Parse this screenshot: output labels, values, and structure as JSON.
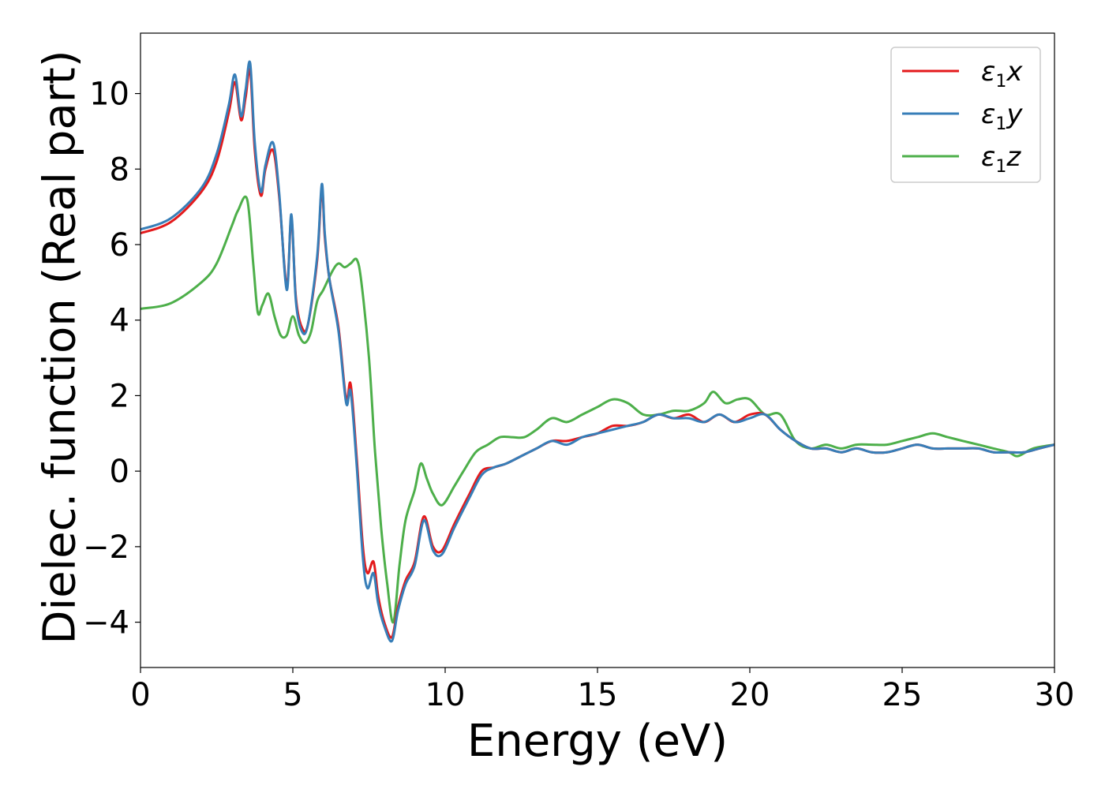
{
  "chart_data": {
    "type": "line",
    "title": "",
    "xlabel": "Energy (eV)",
    "ylabel": "Dielec. function (Real part)",
    "xlim": [
      0,
      30
    ],
    "ylim": [
      -5.2,
      11.6
    ],
    "xticks": [
      0,
      5,
      10,
      15,
      20,
      25,
      30
    ],
    "xtick_labels": [
      "0",
      "5",
      "10",
      "15",
      "20",
      "25",
      "30"
    ],
    "yticks": [
      -4,
      -2,
      0,
      2,
      4,
      6,
      8,
      10
    ],
    "ytick_labels": [
      "−4",
      "−2",
      "0",
      "2",
      "4",
      "6",
      "8",
      "10"
    ],
    "grid": false,
    "legend_position": "top-right",
    "series": [
      {
        "name": "ε1x",
        "name_base": "ε",
        "name_sub": "1",
        "name_var": "x",
        "color": "#e41a1c",
        "x": [
          0,
          1,
          2,
          2.5,
          2.9,
          3.1,
          3.3,
          3.45,
          3.6,
          3.75,
          3.95,
          4.1,
          4.35,
          4.55,
          4.8,
          4.95,
          5.1,
          5.3,
          5.5,
          5.8,
          5.95,
          6.05,
          6.2,
          6.5,
          6.75,
          6.9,
          7.1,
          7.3,
          7.45,
          7.65,
          7.8,
          8.0,
          8.25,
          8.45,
          8.7,
          9.0,
          9.3,
          9.6,
          9.9,
          10.3,
          10.8,
          11.2,
          11.6,
          12.0,
          12.5,
          13.0,
          13.5,
          14.0,
          14.5,
          15.0,
          15.5,
          16.0,
          16.5,
          17.0,
          17.5,
          18.0,
          18.5,
          19.0,
          19.5,
          20.0,
          20.5,
          21.0,
          21.5,
          22.0,
          22.5,
          23.0,
          23.5,
          24.0,
          24.5,
          25.0,
          25.5,
          26.0,
          26.5,
          27.0,
          27.5,
          28.0,
          28.5,
          29.0,
          29.5,
          30.0
        ],
        "y": [
          6.3,
          6.6,
          7.4,
          8.2,
          9.5,
          10.3,
          9.3,
          9.9,
          10.6,
          8.5,
          7.3,
          8.0,
          8.5,
          7.3,
          4.9,
          6.7,
          4.6,
          3.8,
          3.9,
          5.6,
          7.5,
          6.2,
          5.1,
          3.8,
          1.9,
          2.3,
          0.3,
          -2.0,
          -2.7,
          -2.4,
          -3.3,
          -4.0,
          -4.4,
          -3.6,
          -2.9,
          -2.4,
          -1.2,
          -2.0,
          -2.1,
          -1.4,
          -0.6,
          0.0,
          0.1,
          0.2,
          0.4,
          0.6,
          0.8,
          0.8,
          0.9,
          1.0,
          1.2,
          1.2,
          1.3,
          1.5,
          1.4,
          1.5,
          1.3,
          1.5,
          1.3,
          1.5,
          1.5,
          1.1,
          0.8,
          0.6,
          0.6,
          0.5,
          0.6,
          0.5,
          0.5,
          0.6,
          0.7,
          0.6,
          0.6,
          0.6,
          0.6,
          0.5,
          0.5,
          0.5,
          0.6,
          0.7
        ]
      },
      {
        "name": "ε1y",
        "name_base": "ε",
        "name_sub": "1",
        "name_var": "y",
        "color": "#377eb8",
        "x": [
          0,
          1,
          2,
          2.5,
          2.9,
          3.1,
          3.3,
          3.45,
          3.6,
          3.75,
          3.95,
          4.1,
          4.35,
          4.55,
          4.8,
          4.95,
          5.1,
          5.3,
          5.5,
          5.8,
          5.95,
          6.05,
          6.2,
          6.5,
          6.75,
          6.9,
          7.1,
          7.3,
          7.45,
          7.65,
          7.8,
          8.0,
          8.25,
          8.45,
          8.7,
          9.0,
          9.3,
          9.6,
          9.9,
          10.3,
          10.8,
          11.2,
          11.6,
          12.0,
          12.5,
          13.0,
          13.5,
          14.0,
          14.5,
          15.0,
          15.5,
          16.0,
          16.5,
          17.0,
          17.5,
          18.0,
          18.5,
          19.0,
          19.5,
          20.0,
          20.5,
          21.0,
          21.5,
          22.0,
          22.5,
          23.0,
          23.5,
          24.0,
          24.5,
          25.0,
          25.5,
          26.0,
          26.5,
          27.0,
          27.5,
          28.0,
          28.5,
          29.0,
          29.5,
          30.0
        ],
        "y": [
          6.4,
          6.7,
          7.5,
          8.4,
          9.7,
          10.5,
          9.4,
          10.1,
          10.8,
          8.7,
          7.4,
          8.1,
          8.7,
          7.4,
          4.8,
          6.8,
          4.5,
          3.7,
          3.9,
          5.7,
          7.6,
          6.3,
          5.1,
          3.7,
          1.8,
          2.1,
          0.1,
          -2.3,
          -3.1,
          -2.7,
          -3.5,
          -4.1,
          -4.5,
          -3.7,
          -3.0,
          -2.5,
          -1.3,
          -2.1,
          -2.2,
          -1.5,
          -0.7,
          -0.1,
          0.1,
          0.2,
          0.4,
          0.6,
          0.8,
          0.7,
          0.9,
          1.0,
          1.1,
          1.2,
          1.3,
          1.5,
          1.4,
          1.4,
          1.3,
          1.5,
          1.3,
          1.4,
          1.5,
          1.1,
          0.8,
          0.6,
          0.6,
          0.5,
          0.6,
          0.5,
          0.5,
          0.6,
          0.7,
          0.6,
          0.6,
          0.6,
          0.6,
          0.5,
          0.5,
          0.5,
          0.6,
          0.7
        ]
      },
      {
        "name": "ε1z",
        "name_base": "ε",
        "name_sub": "1",
        "name_var": "z",
        "color": "#4daf4a",
        "x": [
          0,
          1,
          2,
          2.5,
          3.0,
          3.2,
          3.5,
          3.7,
          3.85,
          4.0,
          4.2,
          4.4,
          4.6,
          4.8,
          5.0,
          5.2,
          5.4,
          5.6,
          5.8,
          6.0,
          6.3,
          6.5,
          6.7,
          6.9,
          7.1,
          7.25,
          7.5,
          7.7,
          7.9,
          8.1,
          8.3,
          8.5,
          8.7,
          9.0,
          9.2,
          9.4,
          9.6,
          9.9,
          10.3,
          10.6,
          11.0,
          11.4,
          11.8,
          12.2,
          12.6,
          13.0,
          13.5,
          14.0,
          14.5,
          15.0,
          15.5,
          16.0,
          16.5,
          17.0,
          17.5,
          18.0,
          18.5,
          18.8,
          19.2,
          19.6,
          20.0,
          20.5,
          21.0,
          21.5,
          22.0,
          22.5,
          23.0,
          23.5,
          24.0,
          24.5,
          25.0,
          25.5,
          26.0,
          26.5,
          27.0,
          27.5,
          28.0,
          28.5,
          28.8,
          29.3,
          30.0
        ],
        "y": [
          4.3,
          4.45,
          5.0,
          5.5,
          6.5,
          6.9,
          7.2,
          5.5,
          4.2,
          4.4,
          4.7,
          4.1,
          3.6,
          3.6,
          4.1,
          3.6,
          3.4,
          3.7,
          4.5,
          4.8,
          5.3,
          5.5,
          5.4,
          5.5,
          5.6,
          5.0,
          3.0,
          0.5,
          -1.5,
          -3.0,
          -4.0,
          -2.5,
          -1.3,
          -0.5,
          0.2,
          -0.2,
          -0.6,
          -0.9,
          -0.4,
          0.0,
          0.5,
          0.7,
          0.9,
          0.9,
          0.9,
          1.1,
          1.4,
          1.3,
          1.5,
          1.7,
          1.9,
          1.8,
          1.5,
          1.5,
          1.6,
          1.6,
          1.8,
          2.1,
          1.8,
          1.9,
          1.9,
          1.5,
          1.5,
          0.8,
          0.6,
          0.7,
          0.6,
          0.7,
          0.7,
          0.7,
          0.8,
          0.9,
          1.0,
          0.9,
          0.8,
          0.7,
          0.6,
          0.5,
          0.4,
          0.6,
          0.7
        ]
      }
    ]
  }
}
